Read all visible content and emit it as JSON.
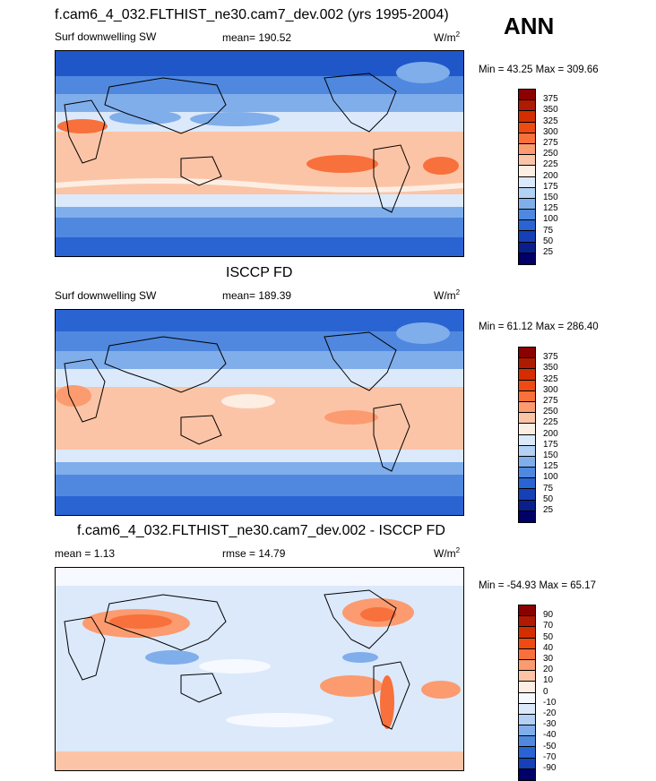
{
  "season_label": "ANN",
  "panels": [
    {
      "title": "f.cam6_4_032.FLTHIST_ne30.cam7_dev.002 (yrs 1995-2004)",
      "left_label": "Surf downwelling SW",
      "center_label": "mean= 190.52",
      "units": "W/m",
      "units_sup": "2",
      "minmax": "Min =  43.25 Max = 309.66",
      "colorbar": {
        "labels": [
          "375",
          "350",
          "325",
          "300",
          "275",
          "250",
          "225",
          "200",
          "175",
          "150",
          "125",
          "100",
          "75",
          "50",
          "25"
        ],
        "colors": [
          "#8b0000",
          "#b01a00",
          "#d42e00",
          "#ee4a12",
          "#f8703c",
          "#fb9b6f",
          "#fcc4a6",
          "#fdeee4",
          "#dbe9fb",
          "#b3d0f5",
          "#80aeeb",
          "#4f88de",
          "#2a64d2",
          "#1640b8",
          "#0a1f8c",
          "#000066"
        ]
      }
    },
    {
      "title": "ISCCP FD",
      "left_label": "Surf downwelling SW",
      "center_label": "mean= 189.39",
      "units": "W/m",
      "units_sup": "2",
      "minmax": "Min =  61.12 Max = 286.40",
      "colorbar": {
        "labels": [
          "375",
          "350",
          "325",
          "300",
          "275",
          "250",
          "225",
          "200",
          "175",
          "150",
          "125",
          "100",
          "75",
          "50",
          "25"
        ],
        "colors": [
          "#8b0000",
          "#b01a00",
          "#d42e00",
          "#ee4a12",
          "#f8703c",
          "#fb9b6f",
          "#fcc4a6",
          "#fdeee4",
          "#dbe9fb",
          "#b3d0f5",
          "#80aeeb",
          "#4f88de",
          "#2a64d2",
          "#1640b8",
          "#0a1f8c",
          "#000066"
        ]
      }
    },
    {
      "title": "f.cam6_4_032.FLTHIST_ne30.cam7_dev.002 - ISCCP FD",
      "left_label": "mean =   1.13",
      "center_label": "rmse =  14.79",
      "units": "W/m",
      "units_sup": "2",
      "minmax": "Min = -54.93 Max =  65.17",
      "colorbar": {
        "labels": [
          "90",
          "70",
          "50",
          "40",
          "30",
          "20",
          "10",
          "0",
          "-10",
          "-20",
          "-30",
          "-40",
          "-50",
          "-70",
          "-90"
        ],
        "colors": [
          "#8b0000",
          "#b01a00",
          "#d42e00",
          "#ee4a12",
          "#f8703c",
          "#fb9b6f",
          "#fcc4a6",
          "#fdeee4",
          "#f6f9ff",
          "#dbe9fb",
          "#b3d0f5",
          "#80aeeb",
          "#4f88de",
          "#2a64d2",
          "#1640b8",
          "#000066"
        ]
      }
    }
  ]
}
